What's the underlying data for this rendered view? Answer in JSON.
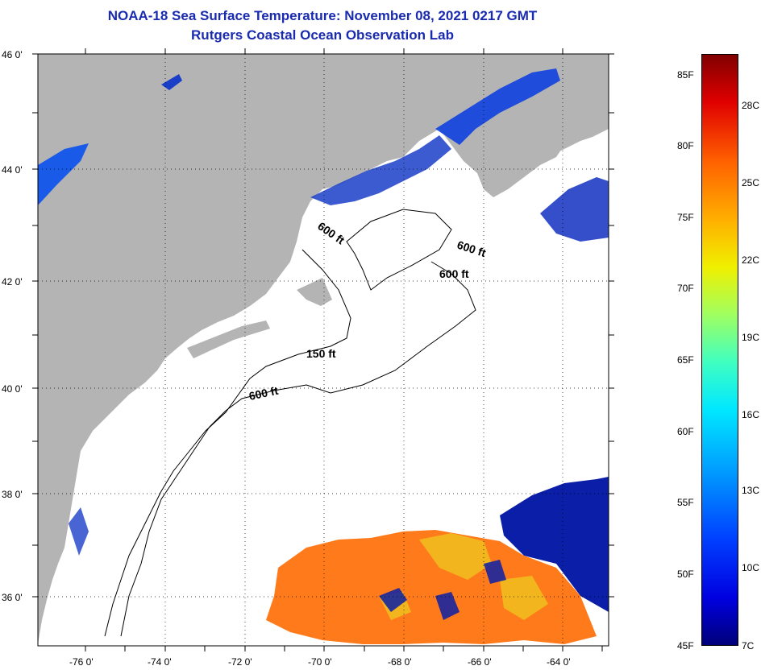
{
  "title": {
    "line1": "NOAA-18 Sea Surface Temperature:  November 08, 2021 0217 GMT",
    "line2": "Rutgers Coastal Ocean Observation Lab"
  },
  "axes": {
    "lat_labels": [
      "46 0'",
      "44 0'",
      "42 0'",
      "40 0'",
      "38 0'",
      "36 0'"
    ],
    "lon_labels": [
      "-76 0'",
      "-74 0'",
      "-72 0'",
      "-70 0'",
      "-68 0'",
      "-66 0'",
      "-64 0'"
    ]
  },
  "contours": {
    "c150": "150 ft",
    "c600a": "600 ft",
    "c600b": "600 ft",
    "c600c": "600 ft",
    "c600d": "600 ft"
  },
  "colorbar": {
    "f_labels": [
      "85F",
      "80F",
      "75F",
      "70F",
      "65F",
      "60F",
      "55F",
      "50F",
      "45F"
    ],
    "c_labels": [
      "28C",
      "25C",
      "22C",
      "19C",
      "16C",
      "13C",
      "10C",
      "7C"
    ]
  },
  "colors": {
    "land": "#b4b4b4",
    "ocean": "#ffffff",
    "title": "#1a2bb0",
    "cold": "#0a1ea8",
    "warm": "#ff7a1a",
    "yellow": "#f0c020"
  }
}
